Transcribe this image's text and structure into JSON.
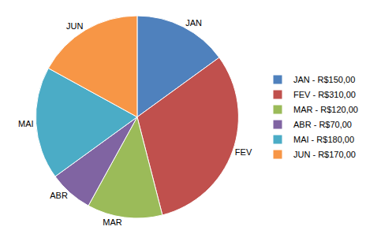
{
  "chart_data": {
    "type": "pie",
    "categories": [
      "JAN",
      "FEV",
      "MAR",
      "ABR",
      "MAI",
      "JUN"
    ],
    "values": [
      150,
      310,
      120,
      70,
      180,
      170
    ],
    "legend_labels": [
      "JAN - R$150,00",
      "FEV - R$310,00",
      "MAR - R$120,00",
      "ABR - R$70,00",
      "MAI - R$180,00",
      "JUN - R$170,00"
    ],
    "colors": [
      "#4f81bd",
      "#c0504d",
      "#9bbb59",
      "#8064a2",
      "#4bacc6",
      "#f79646"
    ],
    "legend": "right"
  }
}
